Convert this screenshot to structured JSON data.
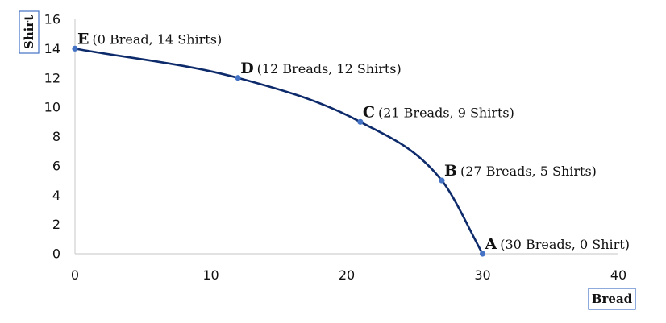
{
  "chart_data": {
    "type": "line",
    "xlabel": "Bread",
    "ylabel": "Shirt",
    "xlim": [
      0,
      40
    ],
    "ylim": [
      0,
      16
    ],
    "xticks": [
      "0",
      "10",
      "20",
      "30",
      "40"
    ],
    "yticks": [
      "0",
      "2",
      "4",
      "6",
      "8",
      "10",
      "12",
      "14",
      "16"
    ],
    "grid": false,
    "points": [
      {
        "letter": "E",
        "x": 0,
        "y": 14,
        "label": "(0 Bread, 14 Shirts)"
      },
      {
        "letter": "D",
        "x": 12,
        "y": 12,
        "label": "(12 Breads, 12 Shirts)"
      },
      {
        "letter": "C",
        "x": 21,
        "y": 9,
        "label": "(21 Breads, 9 Shirts)"
      },
      {
        "letter": "B",
        "x": 27,
        "y": 5,
        "label": "(27 Breads, 5 Shirts)"
      },
      {
        "letter": "A",
        "x": 30,
        "y": 0,
        "label": "(30 Breads, 0 Shirt)"
      }
    ],
    "colors": {
      "line": "#0d2a6b",
      "marker": "#4472c4",
      "axis": "#d0d0d0",
      "title_box": "#4472c4"
    }
  }
}
